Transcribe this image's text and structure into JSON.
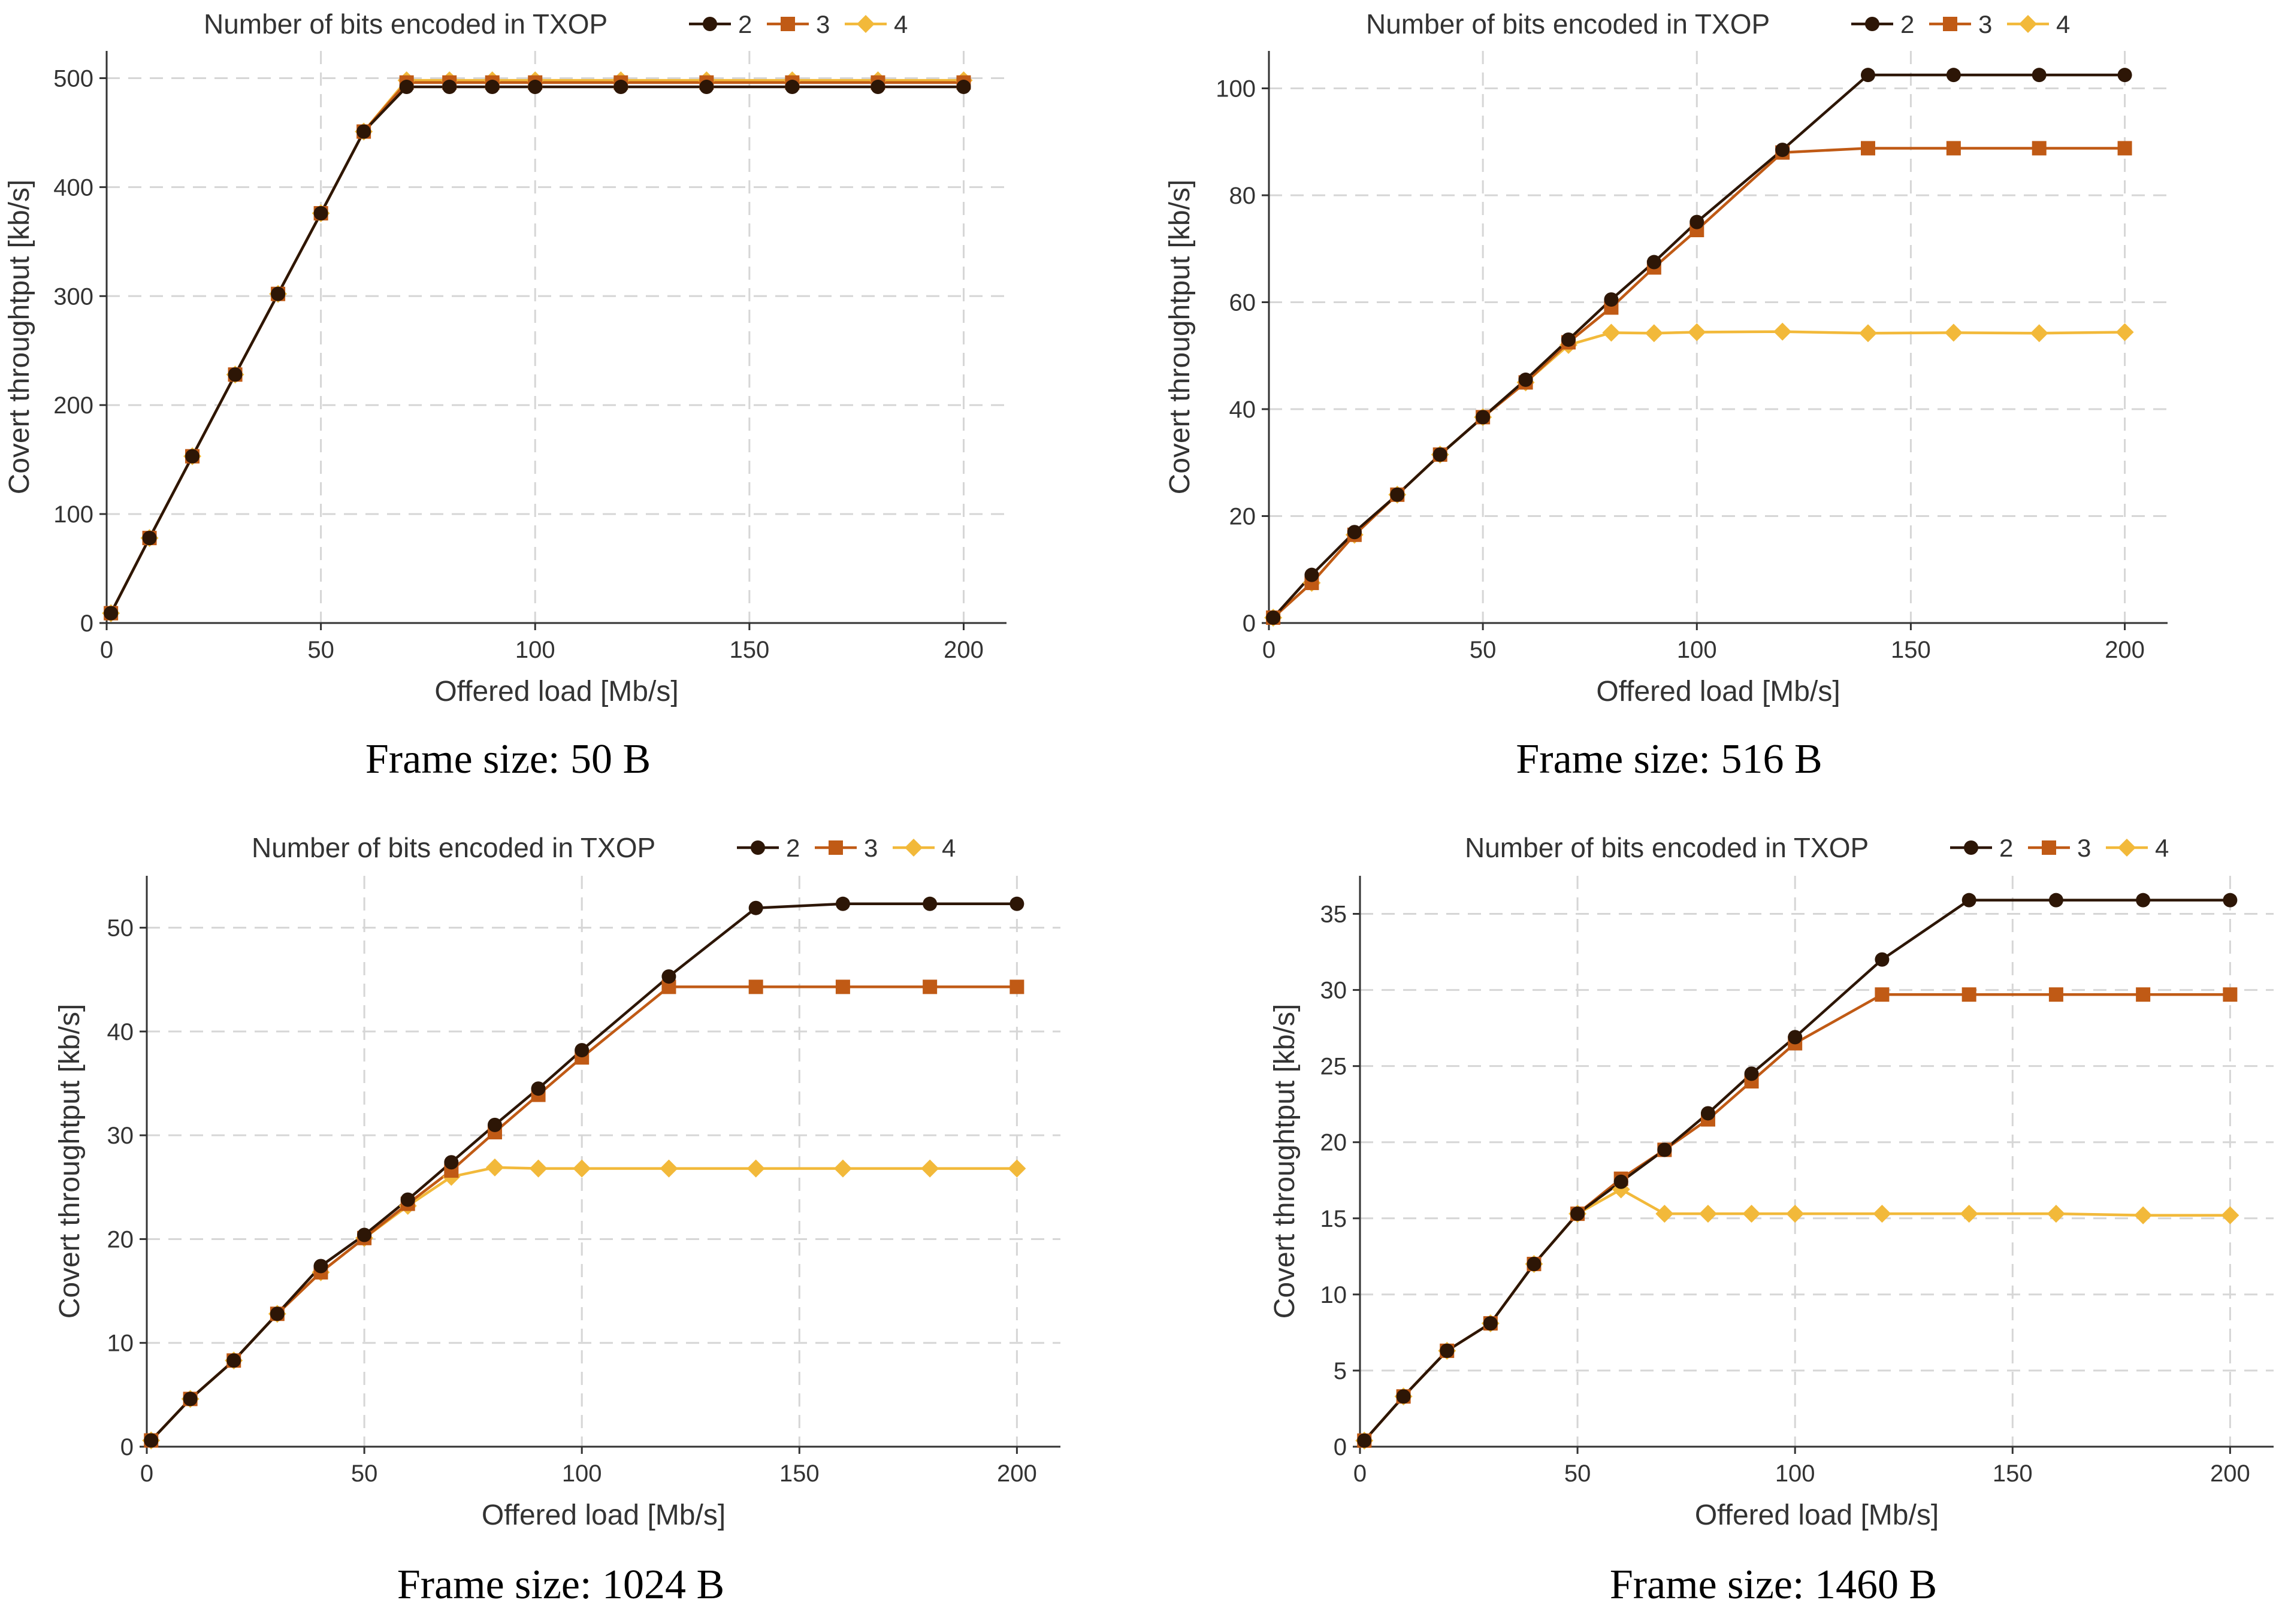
{
  "colors": {
    "series_2": "#2d1606",
    "series_3": "#c05a15",
    "series_4": "#f2b93a",
    "grid": "#d6d6d6",
    "axis": "#333333",
    "text": "#333333"
  },
  "chart_data": [
    {
      "type": "line",
      "caption": "Frame size: 50 B",
      "legend_title": "Number of bits encoded in TXOP",
      "legend_placement": "top",
      "xlabel": "Offered load [Mb/s]",
      "ylabel": "Covert throughtput [kb/s]",
      "xlim": [
        0,
        210
      ],
      "ylim": [
        0,
        525
      ],
      "xticks": [
        0,
        50,
        100,
        150,
        200
      ],
      "yticks": [
        0,
        100,
        200,
        300,
        400,
        500
      ],
      "grid": true,
      "x": [
        1,
        10,
        20,
        30,
        40,
        50,
        60,
        70,
        80,
        90,
        100,
        120,
        140,
        160,
        180,
        200
      ],
      "series": [
        {
          "name": "2",
          "marker": "circle",
          "values": [
            9,
            78,
            153,
            228,
            302,
            376,
            451,
            492,
            492,
            492,
            492,
            492,
            492,
            492,
            492,
            492
          ]
        },
        {
          "name": "3",
          "marker": "square",
          "values": [
            9,
            78,
            153,
            228,
            302,
            376,
            451,
            496,
            496,
            496,
            496,
            496,
            496,
            496,
            496,
            496
          ]
        },
        {
          "name": "4",
          "marker": "diamond",
          "values": [
            9,
            78,
            153,
            228,
            302,
            376,
            451,
            498,
            498,
            498,
            498,
            498,
            498,
            498,
            498,
            498
          ]
        }
      ]
    },
    {
      "type": "line",
      "caption": "Frame size: 516 B",
      "legend_title": "Number of bits encoded in TXOP",
      "legend_placement": "top",
      "xlabel": "Offered load [Mb/s]",
      "ylabel": "Covert throughtput [kb/s]",
      "xlim": [
        0,
        210
      ],
      "ylim": [
        0,
        107
      ],
      "xticks": [
        0,
        50,
        100,
        150,
        200
      ],
      "yticks": [
        0,
        20,
        40,
        60,
        80,
        100
      ],
      "grid": true,
      "x": [
        1,
        10,
        20,
        30,
        40,
        50,
        60,
        70,
        80,
        90,
        100,
        120,
        140,
        160,
        180,
        200
      ],
      "series": [
        {
          "name": "2",
          "marker": "circle",
          "values": [
            1,
            9,
            17,
            24,
            31.5,
            38.5,
            45.5,
            53,
            60.5,
            67.5,
            75,
            88.5,
            102.5,
            102.5,
            102.5,
            102.5
          ]
        },
        {
          "name": "3",
          "marker": "square",
          "values": [
            1,
            7.5,
            16.5,
            24,
            31.5,
            38.5,
            45,
            52.5,
            59,
            66.5,
            73.5,
            88,
            88.8,
            88.8,
            88.8,
            88.8
          ]
        },
        {
          "name": "4",
          "marker": "diamond",
          "values": [
            1,
            7.5,
            16.5,
            24,
            31.5,
            38.5,
            45,
            52,
            54.3,
            54.2,
            54.4,
            54.5,
            54.2,
            54.3,
            54.2,
            54.4
          ]
        }
      ]
    },
    {
      "type": "line",
      "caption": "Frame size: 1024 B",
      "legend_title": "Number of bits encoded in TXOP",
      "legend_placement": "top",
      "xlabel": "Offered load [Mb/s]",
      "ylabel": "Covert throughtput [kb/s]",
      "xlim": [
        0,
        210
      ],
      "ylim": [
        0,
        55
      ],
      "xticks": [
        0,
        50,
        100,
        150,
        200
      ],
      "yticks": [
        0,
        10,
        20,
        30,
        40,
        50
      ],
      "grid": true,
      "x": [
        1,
        10,
        20,
        30,
        40,
        50,
        60,
        70,
        80,
        90,
        100,
        120,
        140,
        160,
        180,
        200
      ],
      "series": [
        {
          "name": "2",
          "marker": "circle",
          "values": [
            0.6,
            4.6,
            8.3,
            12.8,
            17.4,
            20.4,
            23.8,
            27.4,
            31,
            34.5,
            38.2,
            45.3,
            51.9,
            52.3,
            52.3,
            52.3
          ]
        },
        {
          "name": "3",
          "marker": "square",
          "values": [
            0.6,
            4.6,
            8.3,
            12.8,
            16.8,
            20.1,
            23.4,
            26.6,
            30.3,
            33.9,
            37.5,
            44.3,
            44.3,
            44.3,
            44.3,
            44.3
          ]
        },
        {
          "name": "4",
          "marker": "diamond",
          "values": [
            0.6,
            4.6,
            8.3,
            12.8,
            16.8,
            20.1,
            23.2,
            26,
            26.9,
            26.8,
            26.8,
            26.8,
            26.8,
            26.8,
            26.8,
            26.8
          ]
        }
      ]
    },
    {
      "type": "line",
      "caption": "Frame size: 1460 B",
      "legend_title": "Number of bits encoded in TXOP",
      "legend_placement": "top",
      "xlabel": "Offered load [Mb/s]",
      "ylabel": "Covert throughtput [kb/s]",
      "xlim": [
        0,
        210
      ],
      "ylim": [
        0,
        37.5
      ],
      "xticks": [
        0,
        50,
        100,
        150,
        200
      ],
      "yticks": [
        0,
        5,
        10,
        15,
        20,
        25,
        30,
        35
      ],
      "grid": true,
      "x": [
        1,
        10,
        20,
        30,
        40,
        50,
        60,
        70,
        80,
        90,
        100,
        120,
        140,
        160,
        180,
        200
      ],
      "series": [
        {
          "name": "2",
          "marker": "circle",
          "values": [
            0.4,
            3.3,
            6.3,
            8.1,
            12,
            15.3,
            17.4,
            19.5,
            21.9,
            24.5,
            26.9,
            32,
            35.9,
            35.9,
            35.9,
            35.9
          ]
        },
        {
          "name": "3",
          "marker": "square",
          "values": [
            0.4,
            3.3,
            6.3,
            8.1,
            12,
            15.3,
            17.6,
            19.5,
            21.5,
            24,
            26.5,
            29.7,
            29.7,
            29.7,
            29.7,
            29.7
          ]
        },
        {
          "name": "4",
          "marker": "diamond",
          "values": [
            0.4,
            3.3,
            6.3,
            8.1,
            12,
            15.3,
            16.9,
            15.3,
            15.3,
            15.3,
            15.3,
            15.3,
            15.3,
            15.3,
            15.2,
            15.2
          ]
        }
      ]
    }
  ]
}
